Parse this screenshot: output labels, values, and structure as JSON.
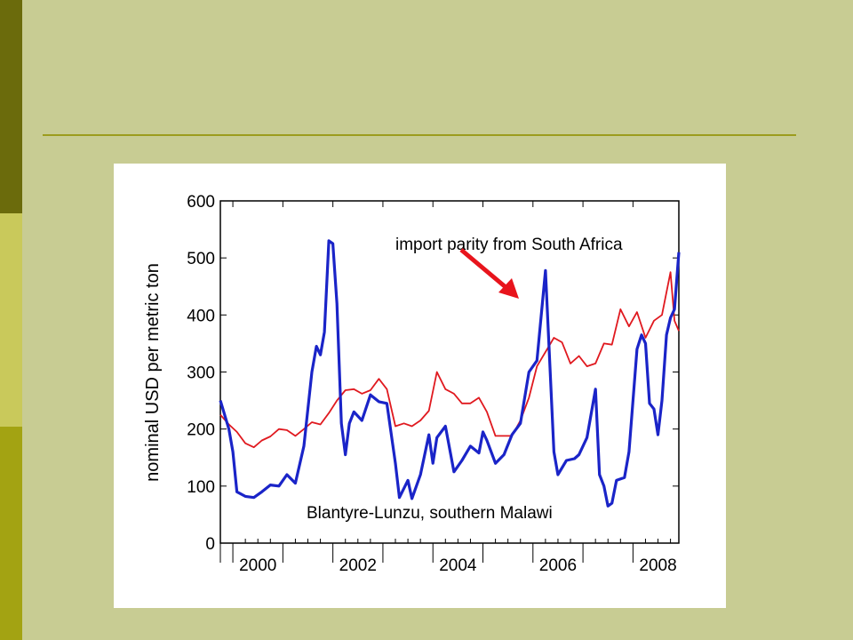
{
  "colors": {
    "slide_background": "#c8cc93",
    "accent_dark": "#6b6b0c",
    "accent_light": "#c9c95b",
    "accent_mid": "#a3a312",
    "rule": "#9c9c1e"
  },
  "chart_data": {
    "type": "line",
    "ylabel": "nominal USD per metric ton",
    "xlabel": "",
    "ylim": [
      0,
      600
    ],
    "xlim": [
      1999.75,
      2008.917
    ],
    "yticks": [
      "0",
      "100",
      "200",
      "300",
      "400",
      "500",
      "600"
    ],
    "xticks": [
      "2000",
      "2002",
      "2004",
      "2006",
      "2008"
    ],
    "grid": false,
    "series": [
      {
        "name": "import parity from South Africa",
        "color": "#e0191f",
        "points": [
          [
            1999.75,
            225
          ],
          [
            1999.92,
            208
          ],
          [
            2000.08,
            195
          ],
          [
            2000.25,
            175
          ],
          [
            2000.42,
            168
          ],
          [
            2000.58,
            180
          ],
          [
            2000.75,
            187
          ],
          [
            2000.92,
            200
          ],
          [
            2001.08,
            198
          ],
          [
            2001.25,
            188
          ],
          [
            2001.42,
            200
          ],
          [
            2001.58,
            212
          ],
          [
            2001.75,
            208
          ],
          [
            2001.92,
            228
          ],
          [
            2002.08,
            250
          ],
          [
            2002.25,
            268
          ],
          [
            2002.42,
            270
          ],
          [
            2002.58,
            262
          ],
          [
            2002.75,
            268
          ],
          [
            2002.92,
            288
          ],
          [
            2003.08,
            270
          ],
          [
            2003.25,
            205
          ],
          [
            2003.42,
            210
          ],
          [
            2003.58,
            205
          ],
          [
            2003.75,
            215
          ],
          [
            2003.92,
            232
          ],
          [
            2004.08,
            300
          ],
          [
            2004.25,
            270
          ],
          [
            2004.42,
            262
          ],
          [
            2004.58,
            245
          ],
          [
            2004.75,
            245
          ],
          [
            2004.92,
            255
          ],
          [
            2005.08,
            230
          ],
          [
            2005.25,
            188
          ],
          [
            2005.42,
            188
          ],
          [
            2005.58,
            188
          ],
          [
            2005.75,
            215
          ],
          [
            2005.92,
            255
          ],
          [
            2006.08,
            310
          ],
          [
            2006.25,
            335
          ],
          [
            2006.42,
            360
          ],
          [
            2006.58,
            352
          ],
          [
            2006.75,
            315
          ],
          [
            2006.92,
            328
          ],
          [
            2007.08,
            310
          ],
          [
            2007.25,
            315
          ],
          [
            2007.42,
            350
          ],
          [
            2007.58,
            348
          ],
          [
            2007.75,
            410
          ],
          [
            2007.92,
            380
          ],
          [
            2008.08,
            405
          ],
          [
            2008.25,
            360
          ],
          [
            2008.42,
            390
          ],
          [
            2008.58,
            400
          ],
          [
            2008.75,
            475
          ],
          [
            2008.83,
            390
          ],
          [
            2008.917,
            372
          ]
        ]
      },
      {
        "name": "Blantyre-Lunzu, southern Malawi",
        "color": "#1a24c8",
        "points": [
          [
            1999.75,
            250
          ],
          [
            1999.92,
            200
          ],
          [
            2000.0,
            160
          ],
          [
            2000.08,
            90
          ],
          [
            2000.25,
            82
          ],
          [
            2000.42,
            80
          ],
          [
            2000.58,
            90
          ],
          [
            2000.75,
            102
          ],
          [
            2000.92,
            100
          ],
          [
            2001.08,
            120
          ],
          [
            2001.25,
            105
          ],
          [
            2001.42,
            170
          ],
          [
            2001.58,
            300
          ],
          [
            2001.67,
            345
          ],
          [
            2001.75,
            330
          ],
          [
            2001.83,
            370
          ],
          [
            2001.92,
            530
          ],
          [
            2002.0,
            525
          ],
          [
            2002.08,
            420
          ],
          [
            2002.17,
            210
          ],
          [
            2002.25,
            155
          ],
          [
            2002.33,
            210
          ],
          [
            2002.42,
            230
          ],
          [
            2002.58,
            215
          ],
          [
            2002.75,
            260
          ],
          [
            2002.92,
            248
          ],
          [
            2003.08,
            245
          ],
          [
            2003.25,
            140
          ],
          [
            2003.33,
            80
          ],
          [
            2003.5,
            110
          ],
          [
            2003.58,
            78
          ],
          [
            2003.75,
            120
          ],
          [
            2003.92,
            190
          ],
          [
            2004.0,
            140
          ],
          [
            2004.08,
            185
          ],
          [
            2004.25,
            205
          ],
          [
            2004.42,
            125
          ],
          [
            2004.58,
            145
          ],
          [
            2004.75,
            170
          ],
          [
            2004.92,
            158
          ],
          [
            2005.0,
            195
          ],
          [
            2005.08,
            180
          ],
          [
            2005.25,
            140
          ],
          [
            2005.42,
            155
          ],
          [
            2005.58,
            190
          ],
          [
            2005.75,
            210
          ],
          [
            2005.92,
            300
          ],
          [
            2006.08,
            320
          ],
          [
            2006.25,
            478
          ],
          [
            2006.42,
            160
          ],
          [
            2006.5,
            120
          ],
          [
            2006.67,
            145
          ],
          [
            2006.83,
            148
          ],
          [
            2006.92,
            155
          ],
          [
            2007.08,
            185
          ],
          [
            2007.25,
            270
          ],
          [
            2007.33,
            120
          ],
          [
            2007.42,
            100
          ],
          [
            2007.5,
            65
          ],
          [
            2007.58,
            70
          ],
          [
            2007.67,
            110
          ],
          [
            2007.83,
            115
          ],
          [
            2007.92,
            160
          ],
          [
            2008.08,
            340
          ],
          [
            2008.17,
            365
          ],
          [
            2008.25,
            350
          ],
          [
            2008.33,
            245
          ],
          [
            2008.42,
            235
          ],
          [
            2008.5,
            190
          ],
          [
            2008.58,
            250
          ],
          [
            2008.67,
            365
          ],
          [
            2008.75,
            395
          ],
          [
            2008.83,
            410
          ],
          [
            2008.917,
            510
          ]
        ]
      }
    ],
    "annotations": [
      {
        "text": "import parity from South Africa"
      },
      {
        "text": "Blantyre-Lunzu, southern Malawi"
      }
    ]
  }
}
